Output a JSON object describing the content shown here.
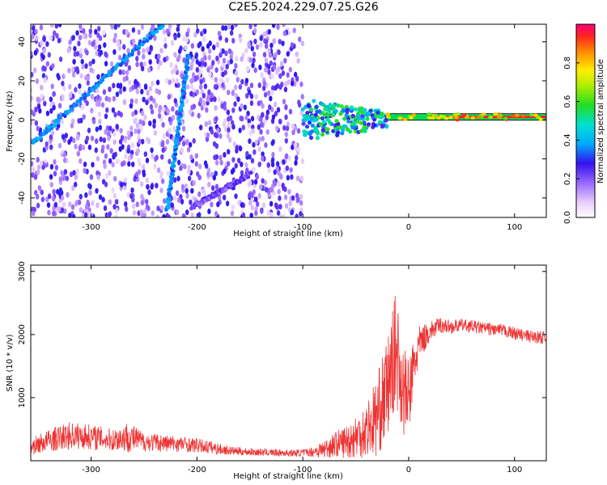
{
  "figure": {
    "title": "C2E5.2024.229.07.25.G26"
  },
  "chart_data": [
    {
      "type": "heatmap",
      "xlabel": "Height of straight line (km)",
      "ylabel": "Frequency (Hz)",
      "xlim": [
        -357,
        130
      ],
      "ylim": [
        -50,
        49
      ],
      "xticks": [
        -300,
        -200,
        -100,
        0,
        100
      ],
      "yticks": [
        -40,
        -20,
        0,
        20,
        40
      ],
      "features": [
        {
          "kind": "noise-region",
          "x_range": [
            -357,
            -100
          ],
          "y_range": [
            -50,
            49
          ],
          "level": 0.2
        },
        {
          "kind": "streak",
          "from": [
            -355,
            -12
          ],
          "to": [
            -232,
            49
          ],
          "level": 0.3
        },
        {
          "kind": "streak",
          "from": [
            -228,
            -45
          ],
          "to": [
            -208,
            33
          ],
          "level": 0.3
        },
        {
          "kind": "streak",
          "from": [
            -205,
            -45
          ],
          "to": [
            -150,
            -28
          ],
          "level": 0.15
        },
        {
          "kind": "cluster",
          "x_range": [
            -100,
            -20
          ],
          "y_range": [
            -10,
            11
          ],
          "level": 0.45
        },
        {
          "kind": "carrier",
          "x_range": [
            -20,
            130
          ],
          "y": 1.5,
          "level": 0.95
        }
      ],
      "colorbar": {
        "label": "Normalized spectral amplitude",
        "range": [
          0.0,
          1.0
        ],
        "ticks": [
          0.0,
          0.2,
          0.4,
          0.6,
          0.8
        ]
      }
    },
    {
      "type": "line",
      "xlabel": "Height of straight line (km)",
      "ylabel": "SNR (10 * v/v)",
      "xlim": [
        -357,
        130
      ],
      "ylim": [
        0,
        3100
      ],
      "xticks": [
        -300,
        -200,
        -100,
        0,
        100
      ],
      "yticks": [
        1000,
        2000,
        3000
      ],
      "color": "#ee3333",
      "series": [
        {
          "x": [
            -357,
            -340,
            -320,
            -300,
            -280,
            -265,
            -250,
            -230,
            -210,
            -190,
            -170,
            -150,
            -130,
            -110,
            -95,
            -80,
            -70,
            -60,
            -50,
            -40,
            -30,
            -20,
            -12,
            -5,
            0,
            5,
            10,
            20,
            30,
            40,
            50,
            60,
            70,
            80,
            90,
            100,
            110,
            120,
            130
          ],
          "y": [
            220,
            320,
            400,
            380,
            330,
            380,
            300,
            280,
            260,
            220,
            160,
            140,
            130,
            120,
            130,
            180,
            260,
            300,
            380,
            500,
            700,
            1150,
            1800,
            1100,
            1000,
            1500,
            1850,
            2050,
            2150,
            2120,
            2150,
            2130,
            2100,
            2080,
            2060,
            2020,
            1980,
            1960,
            1950
          ],
          "amp": [
            130,
            180,
            220,
            200,
            180,
            250,
            150,
            140,
            120,
            110,
            70,
            60,
            55,
            55,
            60,
            150,
            200,
            260,
            350,
            450,
            650,
            800,
            900,
            750,
            600,
            500,
            280,
            160,
            130,
            110,
            100,
            100,
            100,
            100,
            100,
            100,
            100,
            100,
            100
          ]
        }
      ]
    }
  ]
}
